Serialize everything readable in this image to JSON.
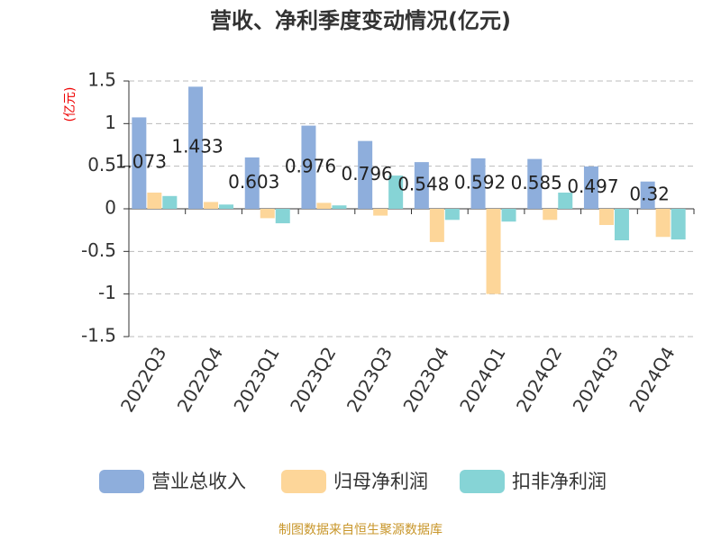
{
  "chart_data": {
    "type": "bar",
    "title": "营收、净利季度变动情况(亿元)",
    "y_unit": "(亿元)",
    "source": "制图数据来自恒生聚源数据库",
    "categories": [
      "2022Q3",
      "2022Q4",
      "2023Q1",
      "2023Q2",
      "2023Q3",
      "2023Q4",
      "2024Q1",
      "2024Q2",
      "2024Q3",
      "2024Q4"
    ],
    "series": [
      {
        "name": "营业总收入",
        "color": "#8eaedc",
        "values": [
          1.073,
          1.433,
          0.603,
          0.976,
          0.796,
          0.548,
          0.592,
          0.585,
          0.497,
          0.32
        ],
        "show_labels": true
      },
      {
        "name": "归母净利润",
        "color": "#fdd699",
        "values": [
          0.19,
          0.08,
          -0.11,
          0.07,
          -0.08,
          -0.39,
          -1.0,
          -0.13,
          -0.19,
          -0.33
        ]
      },
      {
        "name": "扣非净利润",
        "color": "#86d4d6",
        "values": [
          0.15,
          0.05,
          -0.17,
          0.04,
          0.39,
          -0.13,
          -0.15,
          0.19,
          -0.37,
          -0.36
        ]
      }
    ],
    "ylim": [
      -1.5,
      1.5
    ],
    "yticks": [
      -1.5,
      -1,
      -0.5,
      0,
      0.5,
      1,
      1.5
    ],
    "grid": true,
    "legend": "bottom"
  }
}
